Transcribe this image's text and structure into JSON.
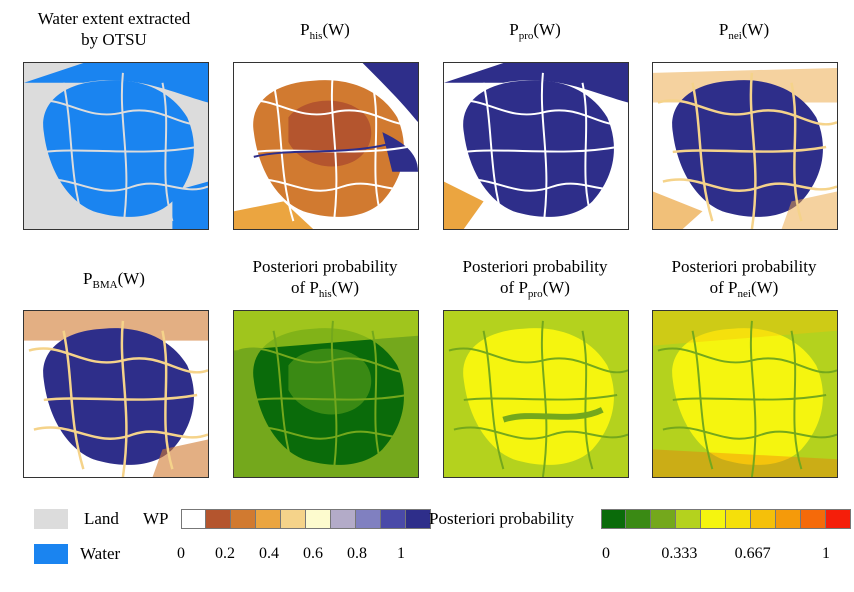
{
  "titles": {
    "t1_l1": "Water extent extracted",
    "t1_l2": "by OTSU",
    "t2_main": "P",
    "t2_sub": "his",
    "t2_tail": "(W)",
    "t3_main": "P",
    "t3_sub": "pro",
    "t3_tail": "(W)",
    "t4_main": "P",
    "t4_sub": "nei",
    "t4_tail": "(W)",
    "t5_main": "P",
    "t5_sub": "BMA",
    "t5_tail": "(W)",
    "t6_l1": "Posteriori probability",
    "t6_main": "of P",
    "t6_sub": "his",
    "t6_tail": "(W)",
    "t7_l1": "Posteriori probability",
    "t7_main": "of P",
    "t7_sub": "pro",
    "t7_tail": "(W)",
    "t8_l1": "Posteriori probability",
    "t8_main": "of P",
    "t8_sub": "nei",
    "t8_tail": "(W)"
  },
  "legend": {
    "land_label": "Land",
    "water_label": "Water",
    "land_color": "#dcdcdc",
    "water_color": "#1a84f0",
    "wp_label": "WP",
    "wp_colors": [
      "#ffffff",
      "#b4552e",
      "#d17a30",
      "#eba540",
      "#f5d38a",
      "#fdfbce",
      "#b3abc8",
      "#8080c0",
      "#4a4aa8",
      "#2e2e8a"
    ],
    "wp_ticks": [
      "0",
      "0.2",
      "0.4",
      "0.6",
      "0.8",
      "1"
    ],
    "pp_label": "Posteriori probability",
    "pp_colors": [
      "#0a6b0a",
      "#3a8a14",
      "#74a81c",
      "#b4d21e",
      "#f5f50f",
      "#f5e00a",
      "#f5c00a",
      "#f59a0a",
      "#f56a0a",
      "#f51e0a"
    ],
    "pp_ticks": [
      "0",
      "0.333",
      "0.667",
      "1"
    ]
  }
}
